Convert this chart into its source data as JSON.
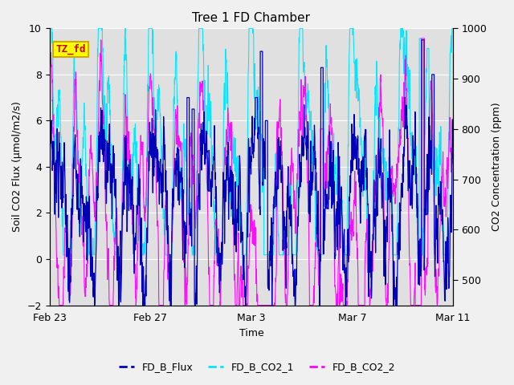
{
  "title": "Tree 1 FD Chamber",
  "xlabel": "Time",
  "ylabel_left": "Soil CO2 Flux (μmol/m2/s)",
  "ylabel_right": "CO2 Concentration (ppm)",
  "ylim_left": [
    -2,
    10
  ],
  "ylim_right": [
    450,
    1000
  ],
  "xtick_labels": [
    "Feb 23",
    "Feb 27",
    "Mar 3",
    "Mar 7",
    "Mar 11"
  ],
  "xtick_positions": [
    0,
    4,
    8,
    12,
    16
  ],
  "bg_color": "#f0f0f0",
  "plot_bg_color": "#e0e0e0",
  "grid_color": "#ffffff",
  "flux_color": "#0000bb",
  "co2_1_color": "#00e5ff",
  "co2_2_color": "#ff00ff",
  "legend_labels": [
    "FD_B_Flux",
    "FD_B_CO2_1",
    "FD_B_CO2_2"
  ],
  "annotation_text": "TZ_fd",
  "annotation_box_facecolor": "#ffff00",
  "annotation_box_edgecolor": "#ccaa00",
  "annotation_text_color": "#cc0000",
  "title_fontsize": 11,
  "label_fontsize": 9,
  "tick_fontsize": 9,
  "legend_fontsize": 9,
  "n_points": 2000,
  "total_days": 16
}
